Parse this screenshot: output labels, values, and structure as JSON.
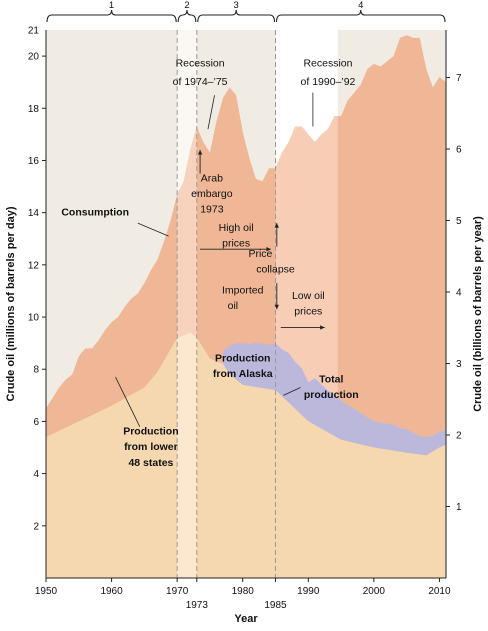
{
  "chart_data": {
    "type": "area",
    "xlabel": "Year",
    "ylabel": "Crude oil (millions of barrels per day)",
    "ylabel_right": "Crude oil (billions of barrels per year)",
    "xlim": [
      1950,
      2011
    ],
    "ylim": [
      0,
      21
    ],
    "ylim_right": [
      0,
      7.665
    ],
    "x_ticks": [
      "1950",
      "1960",
      "1970",
      "1980",
      "1990",
      "2000",
      "2010"
    ],
    "x_ticks_extra": [
      "1973",
      "1985"
    ],
    "y_ticks": [
      "2",
      "4",
      "6",
      "8",
      "10",
      "12",
      "14",
      "16",
      "18",
      "20"
    ],
    "y_ticks_top": "21",
    "y_ticks_right": [
      "1",
      "2",
      "3",
      "4",
      "5",
      "6",
      "7"
    ],
    "periods": [
      {
        "label": "1",
        "start": 1950,
        "end": 1970
      },
      {
        "label": "2",
        "start": 1970,
        "end": 1973
      },
      {
        "label": "3",
        "start": 1973,
        "end": 1985
      },
      {
        "label": "4",
        "start": 1985,
        "end": 2011
      }
    ],
    "series": [
      {
        "name": "Consumption",
        "color": "#efb796",
        "x": [
          1950,
          1951,
          1952,
          1953,
          1954,
          1955,
          1956,
          1957,
          1958,
          1959,
          1960,
          1961,
          1962,
          1963,
          1964,
          1965,
          1966,
          1967,
          1968,
          1969,
          1970,
          1971,
          1972,
          1973,
          1974,
          1975,
          1976,
          1977,
          1978,
          1979,
          1980,
          1981,
          1982,
          1983,
          1984,
          1985,
          1986,
          1987,
          1988,
          1989,
          1990,
          1991,
          1992,
          1993,
          1994,
          1995,
          1996,
          1997,
          1998,
          1999,
          2000,
          2001,
          2002,
          2003,
          2004,
          2005,
          2006,
          2007,
          2008,
          2009,
          2010,
          2011
        ],
        "values": [
          6.5,
          6.9,
          7.3,
          7.6,
          7.8,
          8.5,
          8.8,
          8.8,
          9.1,
          9.5,
          9.8,
          10.0,
          10.4,
          10.7,
          10.9,
          11.3,
          11.8,
          12.2,
          12.9,
          13.7,
          14.7,
          15.2,
          16.4,
          17.3,
          16.7,
          16.3,
          17.5,
          18.4,
          18.8,
          18.5,
          17.1,
          16.1,
          15.3,
          15.2,
          15.7,
          15.7,
          16.3,
          16.7,
          17.3,
          17.3,
          17.0,
          16.7,
          17.0,
          17.2,
          17.7,
          17.7,
          18.3,
          18.6,
          18.9,
          19.5,
          19.7,
          19.6,
          19.8,
          20.0,
          20.7,
          20.8,
          20.7,
          20.7,
          19.5,
          18.8,
          19.2,
          19.0
        ]
      },
      {
        "name": "Production from lower 48 states",
        "color": "#f6d8b0",
        "x": [
          1950,
          1955,
          1960,
          1965,
          1967,
          1970,
          1972,
          1973,
          1975,
          1977,
          1978,
          1980,
          1985,
          1990,
          1995,
          2000,
          2005,
          2008,
          2010,
          2011
        ],
        "values": [
          5.4,
          6.0,
          6.6,
          7.3,
          7.9,
          9.2,
          9.4,
          9.2,
          8.4,
          8.2,
          7.8,
          7.4,
          7.2,
          6.0,
          5.3,
          5.0,
          4.8,
          4.7,
          5.0,
          5.1
        ]
      },
      {
        "name": "Production from Alaska",
        "color": "#bcb8dc",
        "x": [
          1977,
          1978,
          1979,
          1980,
          1981,
          1982,
          1983,
          1984,
          1985,
          1986,
          1987,
          1988,
          1989,
          1990,
          1991,
          1992,
          1993,
          1994,
          1995,
          1996,
          1997,
          1998,
          1999,
          2000,
          2001,
          2002,
          2003,
          2004,
          2005,
          2006,
          2007,
          2008,
          2009,
          2010,
          2011
        ],
        "values": [
          0.5,
          1.1,
          1.4,
          1.6,
          1.6,
          1.7,
          1.7,
          1.7,
          1.8,
          1.8,
          1.9,
          1.8,
          1.8,
          1.5,
          1.8,
          1.7,
          1.6,
          1.6,
          1.5,
          1.4,
          1.3,
          1.2,
          1.1,
          1.0,
          1.0,
          1.0,
          1.0,
          0.9,
          0.9,
          0.8,
          0.7,
          0.7,
          0.6,
          0.6,
          0.6
        ]
      },
      {
        "name": "Total production",
        "x": [
          1950,
          1970,
          1977,
          1980,
          1985,
          1990,
          2000,
          2010,
          2011
        ],
        "values": [
          5.4,
          9.2,
          8.7,
          9.0,
          9.0,
          7.5,
          6.0,
          5.6,
          5.7
        ]
      }
    ],
    "annotations": [
      {
        "text": "Recession",
        "x": 1973.5,
        "y": 19.6,
        "style": "normal"
      },
      {
        "text": "of 1974–’75",
        "x": 1973.5,
        "y": 18.9,
        "style": "normal"
      },
      {
        "text": "Recession",
        "x": 1993.0,
        "y": 19.6,
        "style": "normal"
      },
      {
        "text": "of 1990–’92",
        "x": 1993.0,
        "y": 18.9,
        "style": "normal"
      },
      {
        "text": "Arab",
        "x": 1975.3,
        "y": 15.2,
        "style": "normal"
      },
      {
        "text": "embargo",
        "x": 1975.3,
        "y": 14.6,
        "style": "normal"
      },
      {
        "text": "1973",
        "x": 1975.3,
        "y": 14.0,
        "style": "normal"
      },
      {
        "text": "Consumption",
        "x": 1957.5,
        "y": 13.9,
        "style": "bold"
      },
      {
        "text": "High oil",
        "x": 1979.0,
        "y": 13.3,
        "style": "normal"
      },
      {
        "text": "prices",
        "x": 1979.0,
        "y": 12.7,
        "style": "normal"
      },
      {
        "text": "Price",
        "x": 1982.7,
        "y": 12.3,
        "style": "normal"
      },
      {
        "text": "collapse",
        "x": 1985.0,
        "y": 11.7,
        "style": "normal"
      },
      {
        "text": "Imported",
        "x": 1980.0,
        "y": 10.9,
        "style": "normal"
      },
      {
        "text": "oil",
        "x": 1978.5,
        "y": 10.3,
        "style": "normal"
      },
      {
        "text": "Low oil",
        "x": 1990.0,
        "y": 10.7,
        "style": "normal"
      },
      {
        "text": "prices",
        "x": 1990.0,
        "y": 10.1,
        "style": "normal"
      },
      {
        "text": "Production",
        "x": 1980.0,
        "y": 8.3,
        "style": "bold"
      },
      {
        "text": "from  Alaska",
        "x": 1980.0,
        "y": 7.7,
        "style": "bold"
      },
      {
        "text": "Total",
        "x": 1993.5,
        "y": 7.5,
        "style": "bold"
      },
      {
        "text": "production",
        "x": 1993.5,
        "y": 6.9,
        "style": "bold"
      },
      {
        "text": "Production",
        "x": 1966.0,
        "y": 5.5,
        "style": "bold"
      },
      {
        "text": "from lower",
        "x": 1966.0,
        "y": 4.9,
        "style": "bold"
      },
      {
        "text": "48 states",
        "x": 1966.0,
        "y": 4.3,
        "style": "bold"
      }
    ]
  }
}
